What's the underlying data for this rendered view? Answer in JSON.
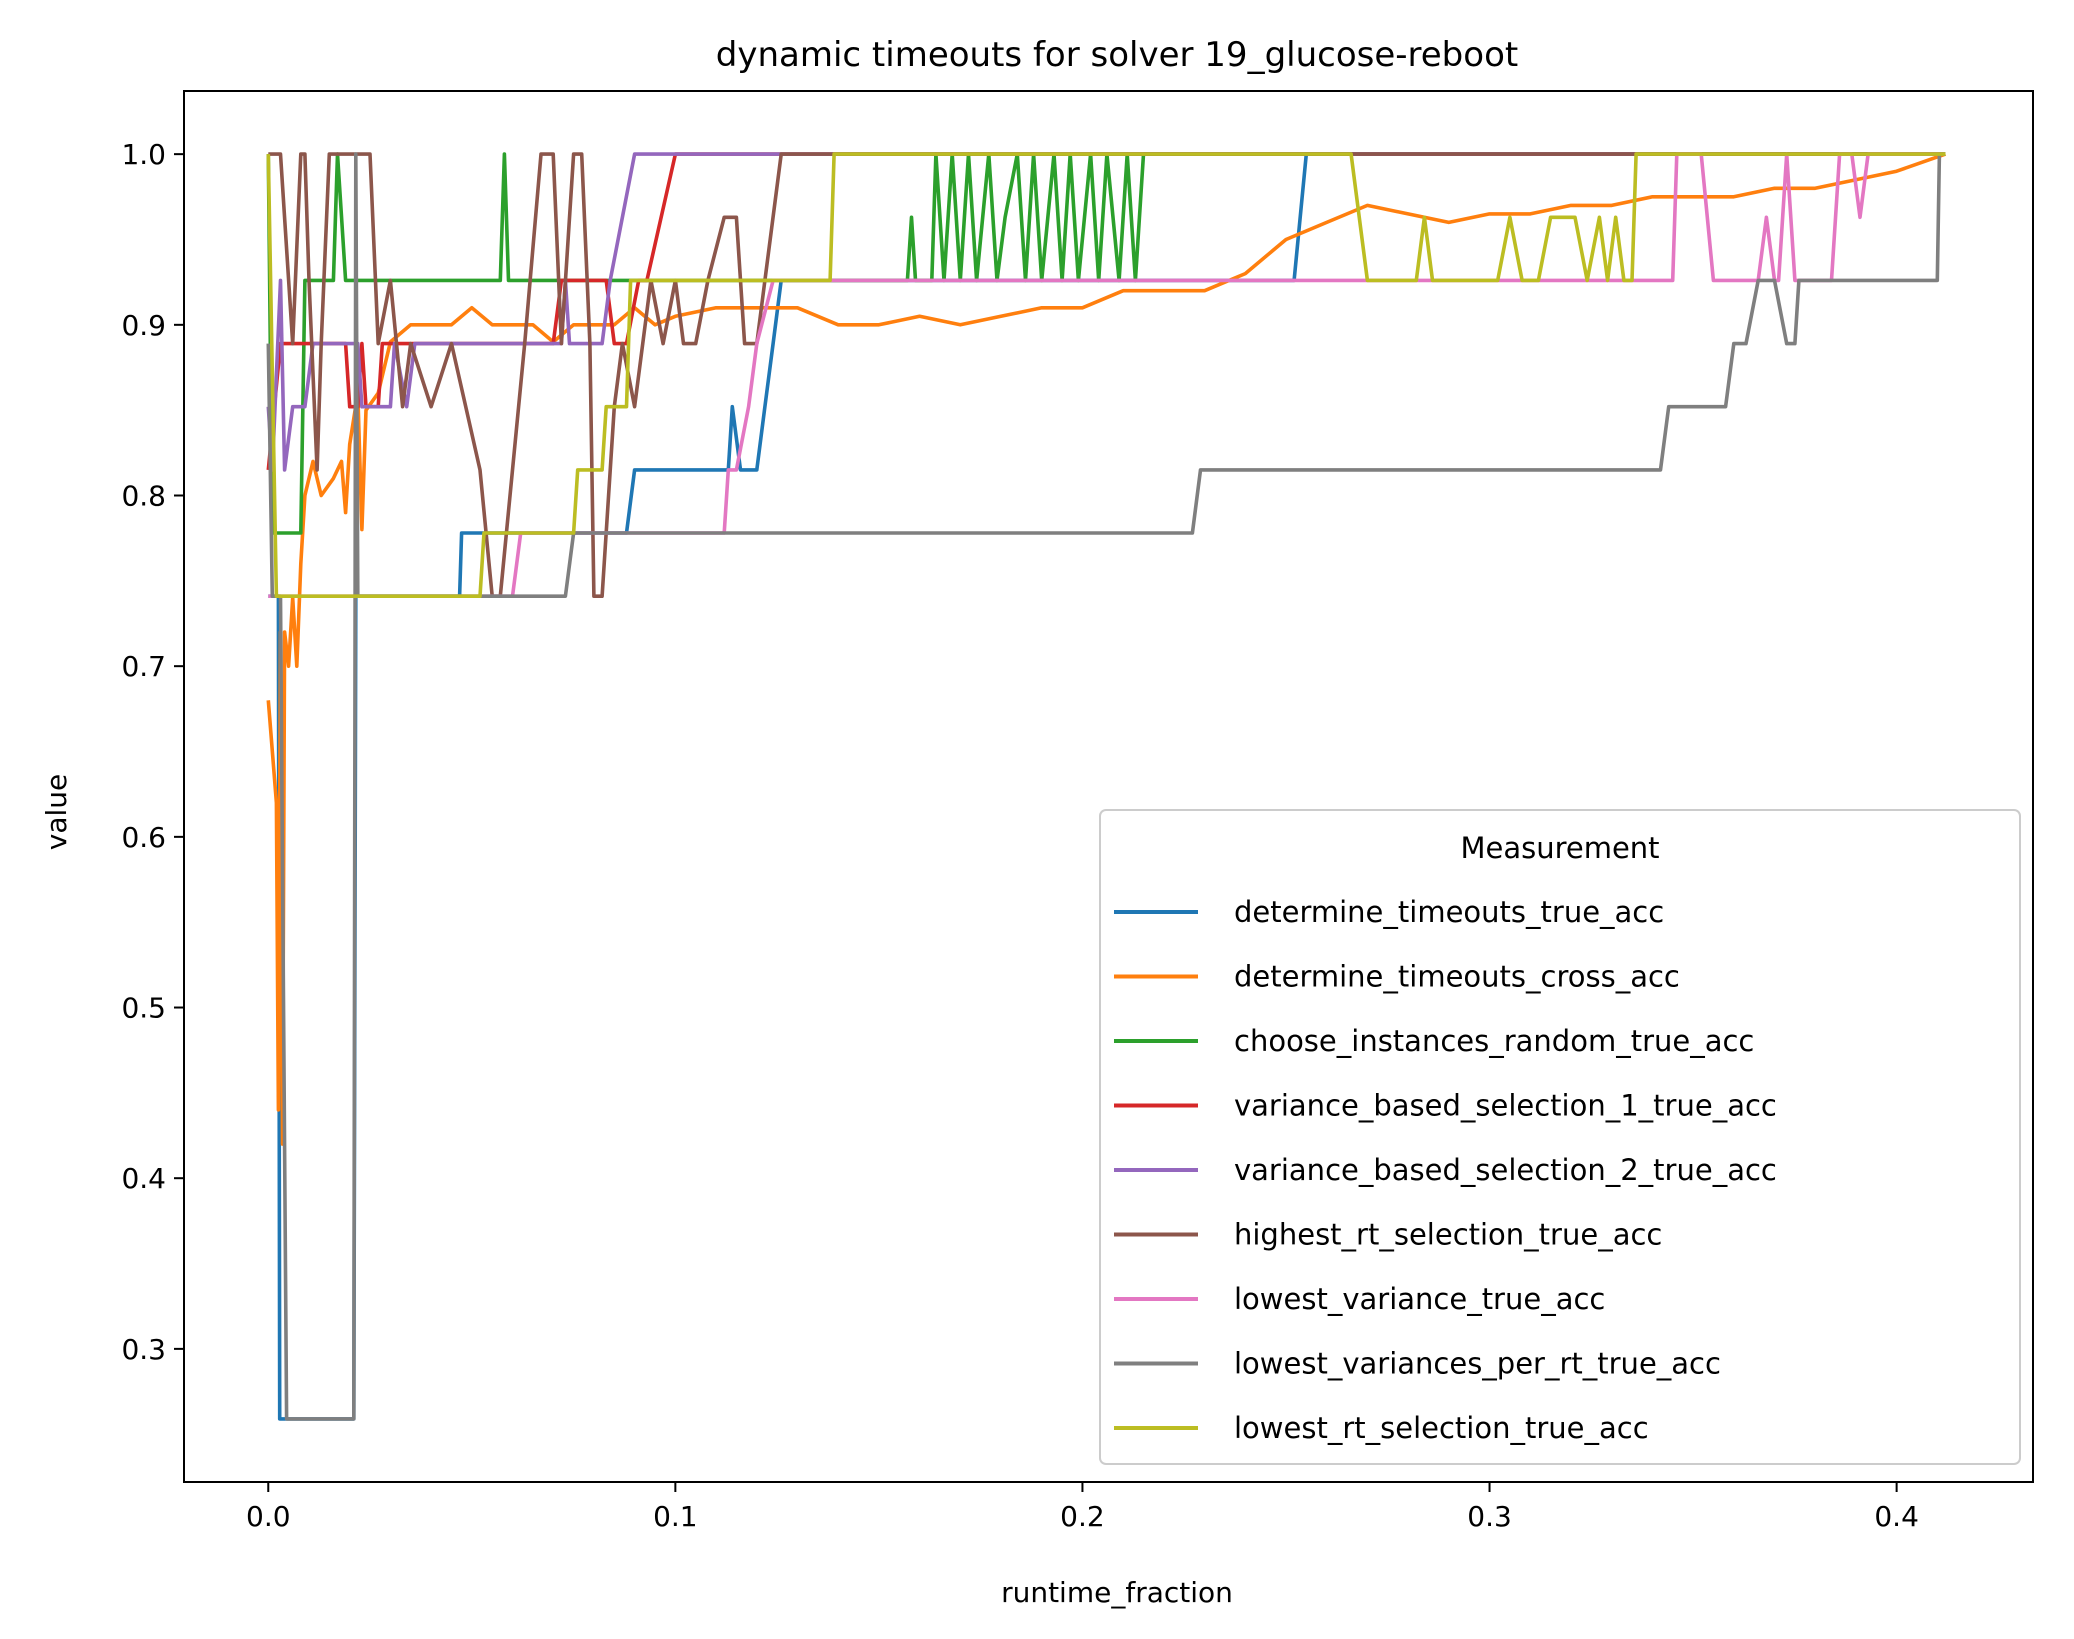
{
  "chart_data": {
    "type": "line",
    "title": "dynamic timeouts for solver 19_glucose-reboot",
    "xlabel": "runtime_fraction",
    "ylabel": "value",
    "xlim": [
      -0.0207,
      0.4335
    ],
    "ylim": [
      0.222,
      1.037
    ],
    "xticks": [
      0.0,
      0.1,
      0.2,
      0.3,
      0.4
    ],
    "xtick_labels": [
      "0.0",
      "0.1",
      "0.2",
      "0.3",
      "0.4"
    ],
    "yticks": [
      0.3,
      0.4,
      0.5,
      0.6,
      0.7,
      0.8,
      0.9,
      1.0
    ],
    "ytick_labels": [
      "0.3",
      "0.4",
      "0.5",
      "0.6",
      "0.7",
      "0.8",
      "0.9",
      "1.0"
    ],
    "legend": {
      "title": "Measurement",
      "placement": "lower-right"
    },
    "series": [
      {
        "name": "determine_timeouts_true_acc",
        "color": "#1f77b4",
        "points": [
          [
            0,
            0.741
          ],
          [
            0.0025,
            0.741
          ],
          [
            0.0028,
            0.259
          ],
          [
            0.021,
            0.259
          ],
          [
            0.0215,
            0.741
          ],
          [
            0.047,
            0.741
          ],
          [
            0.0475,
            0.778
          ],
          [
            0.088,
            0.778
          ],
          [
            0.09,
            0.815
          ],
          [
            0.113,
            0.815
          ],
          [
            0.114,
            0.852
          ],
          [
            0.116,
            0.815
          ],
          [
            0.12,
            0.815
          ],
          [
            0.122,
            0.852
          ],
          [
            0.124,
            0.889
          ],
          [
            0.126,
            0.926
          ],
          [
            0.252,
            0.926
          ],
          [
            0.255,
            1.0
          ],
          [
            0.412,
            1.0
          ]
        ]
      },
      {
        "name": "determine_timeouts_cross_acc",
        "color": "#ff7f0e",
        "points": [
          [
            0,
            0.68
          ],
          [
            0.002,
            0.62
          ],
          [
            0.0025,
            0.44
          ],
          [
            0.003,
            0.72
          ],
          [
            0.0035,
            0.42
          ],
          [
            0.004,
            0.72
          ],
          [
            0.005,
            0.7
          ],
          [
            0.006,
            0.74
          ],
          [
            0.007,
            0.7
          ],
          [
            0.008,
            0.76
          ],
          [
            0.009,
            0.8
          ],
          [
            0.011,
            0.82
          ],
          [
            0.013,
            0.8
          ],
          [
            0.016,
            0.81
          ],
          [
            0.018,
            0.82
          ],
          [
            0.019,
            0.79
          ],
          [
            0.02,
            0.83
          ],
          [
            0.022,
            0.86
          ],
          [
            0.023,
            0.78
          ],
          [
            0.024,
            0.85
          ],
          [
            0.027,
            0.86
          ],
          [
            0.03,
            0.89
          ],
          [
            0.035,
            0.9
          ],
          [
            0.04,
            0.9
          ],
          [
            0.045,
            0.9
          ],
          [
            0.05,
            0.91
          ],
          [
            0.055,
            0.9
          ],
          [
            0.06,
            0.9
          ],
          [
            0.065,
            0.9
          ],
          [
            0.07,
            0.89
          ],
          [
            0.075,
            0.9
          ],
          [
            0.08,
            0.9
          ],
          [
            0.085,
            0.9
          ],
          [
            0.09,
            0.91
          ],
          [
            0.095,
            0.9
          ],
          [
            0.1,
            0.905
          ],
          [
            0.11,
            0.91
          ],
          [
            0.12,
            0.91
          ],
          [
            0.13,
            0.91
          ],
          [
            0.14,
            0.9
          ],
          [
            0.15,
            0.9
          ],
          [
            0.16,
            0.905
          ],
          [
            0.17,
            0.9
          ],
          [
            0.18,
            0.905
          ],
          [
            0.19,
            0.91
          ],
          [
            0.2,
            0.91
          ],
          [
            0.21,
            0.92
          ],
          [
            0.22,
            0.92
          ],
          [
            0.23,
            0.92
          ],
          [
            0.24,
            0.93
          ],
          [
            0.25,
            0.95
          ],
          [
            0.26,
            0.96
          ],
          [
            0.27,
            0.97
          ],
          [
            0.28,
            0.965
          ],
          [
            0.29,
            0.96
          ],
          [
            0.3,
            0.965
          ],
          [
            0.31,
            0.965
          ],
          [
            0.32,
            0.97
          ],
          [
            0.33,
            0.97
          ],
          [
            0.34,
            0.975
          ],
          [
            0.35,
            0.975
          ],
          [
            0.36,
            0.975
          ],
          [
            0.37,
            0.98
          ],
          [
            0.38,
            0.98
          ],
          [
            0.39,
            0.985
          ],
          [
            0.4,
            0.99
          ],
          [
            0.412,
            1.0
          ]
        ]
      },
      {
        "name": "choose_instances_random_true_acc",
        "color": "#2ca02c",
        "points": [
          [
            0,
            1.0
          ],
          [
            0.001,
            0.778
          ],
          [
            0.008,
            0.778
          ],
          [
            0.009,
            0.926
          ],
          [
            0.016,
            0.926
          ],
          [
            0.017,
            1.0
          ],
          [
            0.019,
            0.926
          ],
          [
            0.057,
            0.926
          ],
          [
            0.058,
            1.0
          ],
          [
            0.059,
            0.926
          ],
          [
            0.157,
            0.926
          ],
          [
            0.158,
            0.963
          ],
          [
            0.159,
            0.926
          ],
          [
            0.163,
            0.926
          ],
          [
            0.164,
            1.0
          ],
          [
            0.166,
            0.926
          ],
          [
            0.168,
            1.0
          ],
          [
            0.17,
            0.926
          ],
          [
            0.172,
            1.0
          ],
          [
            0.174,
            0.926
          ],
          [
            0.177,
            1.0
          ],
          [
            0.179,
            0.926
          ],
          [
            0.181,
            0.963
          ],
          [
            0.184,
            1.0
          ],
          [
            0.186,
            0.926
          ],
          [
            0.188,
            1.0
          ],
          [
            0.19,
            0.926
          ],
          [
            0.193,
            1.0
          ],
          [
            0.195,
            0.926
          ],
          [
            0.197,
            1.0
          ],
          [
            0.199,
            0.926
          ],
          [
            0.202,
            1.0
          ],
          [
            0.204,
            0.926
          ],
          [
            0.206,
            1.0
          ],
          [
            0.209,
            0.926
          ],
          [
            0.211,
            1.0
          ],
          [
            0.213,
            0.926
          ],
          [
            0.215,
            1.0
          ],
          [
            0.218,
            1.0
          ],
          [
            0.412,
            1.0
          ]
        ]
      },
      {
        "name": "variance_based_selection_1_true_acc",
        "color": "#d62728",
        "points": [
          [
            0,
            0.815
          ],
          [
            0.003,
            0.889
          ],
          [
            0.019,
            0.889
          ],
          [
            0.02,
            0.852
          ],
          [
            0.022,
            0.852
          ],
          [
            0.023,
            0.889
          ],
          [
            0.024,
            0.852
          ],
          [
            0.027,
            0.852
          ],
          [
            0.028,
            0.889
          ],
          [
            0.07,
            0.889
          ],
          [
            0.072,
            0.926
          ],
          [
            0.083,
            0.926
          ],
          [
            0.085,
            0.889
          ],
          [
            0.088,
            0.889
          ],
          [
            0.091,
            0.926
          ],
          [
            0.093,
            0.926
          ],
          [
            0.1,
            1.0
          ],
          [
            0.412,
            1.0
          ]
        ]
      },
      {
        "name": "variance_based_selection_2_true_acc",
        "color": "#9467bd",
        "points": [
          [
            0,
            0.852
          ],
          [
            0.001,
            0.815
          ],
          [
            0.003,
            0.926
          ],
          [
            0.004,
            0.815
          ],
          [
            0.006,
            0.852
          ],
          [
            0.009,
            0.852
          ],
          [
            0.011,
            0.889
          ],
          [
            0.022,
            0.889
          ],
          [
            0.023,
            0.852
          ],
          [
            0.03,
            0.852
          ],
          [
            0.031,
            0.889
          ],
          [
            0.034,
            0.852
          ],
          [
            0.036,
            0.889
          ],
          [
            0.072,
            0.889
          ],
          [
            0.073,
            0.926
          ],
          [
            0.074,
            0.889
          ],
          [
            0.082,
            0.889
          ],
          [
            0.084,
            0.926
          ],
          [
            0.09,
            1.0
          ],
          [
            0.412,
            1.0
          ]
        ]
      },
      {
        "name": "highest_rt_selection_true_acc",
        "color": "#8c564b",
        "points": [
          [
            0,
            1.0
          ],
          [
            0.003,
            1.0
          ],
          [
            0.006,
            0.889
          ],
          [
            0.008,
            1.0
          ],
          [
            0.009,
            1.0
          ],
          [
            0.01,
            0.926
          ],
          [
            0.012,
            0.815
          ],
          [
            0.013,
            0.889
          ],
          [
            0.015,
            1.0
          ],
          [
            0.025,
            1.0
          ],
          [
            0.027,
            0.889
          ],
          [
            0.03,
            0.926
          ],
          [
            0.033,
            0.852
          ],
          [
            0.035,
            0.889
          ],
          [
            0.04,
            0.852
          ],
          [
            0.045,
            0.889
          ],
          [
            0.052,
            0.815
          ],
          [
            0.055,
            0.741
          ],
          [
            0.057,
            0.741
          ],
          [
            0.06,
            0.815
          ],
          [
            0.063,
            0.889
          ],
          [
            0.067,
            1.0
          ],
          [
            0.07,
            1.0
          ],
          [
            0.072,
            0.889
          ],
          [
            0.075,
            1.0
          ],
          [
            0.077,
            1.0
          ],
          [
            0.079,
            0.889
          ],
          [
            0.08,
            0.741
          ],
          [
            0.082,
            0.741
          ],
          [
            0.085,
            0.852
          ],
          [
            0.087,
            0.889
          ],
          [
            0.09,
            0.852
          ],
          [
            0.094,
            0.926
          ],
          [
            0.097,
            0.889
          ],
          [
            0.1,
            0.926
          ],
          [
            0.102,
            0.889
          ],
          [
            0.105,
            0.889
          ],
          [
            0.108,
            0.926
          ],
          [
            0.112,
            0.963
          ],
          [
            0.115,
            0.963
          ],
          [
            0.117,
            0.889
          ],
          [
            0.12,
            0.889
          ],
          [
            0.122,
            0.926
          ],
          [
            0.126,
            1.0
          ],
          [
            0.412,
            1.0
          ]
        ]
      },
      {
        "name": "lowest_variance_true_acc",
        "color": "#e377c2",
        "points": [
          [
            0,
            0.741
          ],
          [
            0.06,
            0.741
          ],
          [
            0.062,
            0.778
          ],
          [
            0.112,
            0.778
          ],
          [
            0.113,
            0.815
          ],
          [
            0.115,
            0.815
          ],
          [
            0.118,
            0.852
          ],
          [
            0.12,
            0.889
          ],
          [
            0.124,
            0.926
          ],
          [
            0.345,
            0.926
          ],
          [
            0.346,
            1.0
          ],
          [
            0.352,
            1.0
          ],
          [
            0.355,
            0.926
          ],
          [
            0.366,
            0.926
          ],
          [
            0.368,
            0.963
          ],
          [
            0.37,
            0.926
          ],
          [
            0.371,
            0.926
          ],
          [
            0.373,
            1.0
          ],
          [
            0.375,
            0.926
          ],
          [
            0.384,
            0.926
          ],
          [
            0.386,
            1.0
          ],
          [
            0.389,
            1.0
          ],
          [
            0.391,
            0.963
          ],
          [
            0.393,
            1.0
          ],
          [
            0.412,
            1.0
          ]
        ]
      },
      {
        "name": "lowest_variances_per_rt_true_acc",
        "color": "#7f7f7f",
        "points": [
          [
            0,
            0.889
          ],
          [
            0.001,
            0.741
          ],
          [
            0.003,
            0.741
          ],
          [
            0.0045,
            0.259
          ],
          [
            0.021,
            0.259
          ],
          [
            0.0215,
            1.0
          ],
          [
            0.022,
            0.741
          ],
          [
            0.053,
            0.741
          ],
          [
            0.0535,
            0.741
          ],
          [
            0.073,
            0.741
          ],
          [
            0.075,
            0.778
          ],
          [
            0.227,
            0.778
          ],
          [
            0.229,
            0.815
          ],
          [
            0.342,
            0.815
          ],
          [
            0.344,
            0.852
          ],
          [
            0.358,
            0.852
          ],
          [
            0.36,
            0.889
          ],
          [
            0.363,
            0.889
          ],
          [
            0.366,
            0.926
          ],
          [
            0.37,
            0.926
          ],
          [
            0.373,
            0.889
          ],
          [
            0.375,
            0.889
          ],
          [
            0.376,
            0.926
          ],
          [
            0.41,
            0.926
          ],
          [
            0.4105,
            1.0
          ],
          [
            0.412,
            1.0
          ]
        ]
      },
      {
        "name": "lowest_rt_selection_true_acc",
        "color": "#bcbd22",
        "points": [
          [
            0,
            1.0
          ],
          [
            0.002,
            0.741
          ],
          [
            0.052,
            0.741
          ],
          [
            0.053,
            0.778
          ],
          [
            0.075,
            0.778
          ],
          [
            0.076,
            0.815
          ],
          [
            0.082,
            0.815
          ],
          [
            0.083,
            0.852
          ],
          [
            0.088,
            0.852
          ],
          [
            0.089,
            0.926
          ],
          [
            0.138,
            0.926
          ],
          [
            0.139,
            1.0
          ],
          [
            0.266,
            1.0
          ],
          [
            0.27,
            0.926
          ],
          [
            0.282,
            0.926
          ],
          [
            0.284,
            0.963
          ],
          [
            0.286,
            0.926
          ],
          [
            0.302,
            0.926
          ],
          [
            0.305,
            0.963
          ],
          [
            0.308,
            0.926
          ],
          [
            0.312,
            0.926
          ],
          [
            0.315,
            0.963
          ],
          [
            0.321,
            0.963
          ],
          [
            0.324,
            0.926
          ],
          [
            0.327,
            0.963
          ],
          [
            0.329,
            0.926
          ],
          [
            0.331,
            0.963
          ],
          [
            0.333,
            0.926
          ],
          [
            0.335,
            0.926
          ],
          [
            0.336,
            1.0
          ],
          [
            0.412,
            1.0
          ]
        ]
      }
    ]
  }
}
